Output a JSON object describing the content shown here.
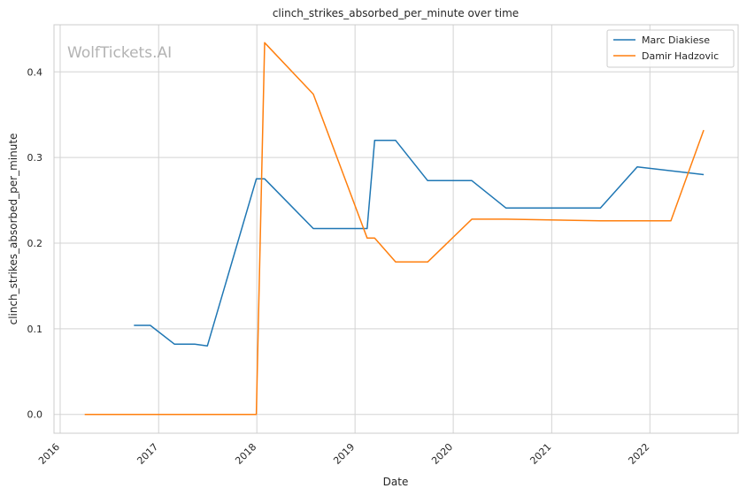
{
  "chart_data": {
    "type": "line",
    "title": "clinch_strikes_absorbed_per_minute over time",
    "xlabel": "Date",
    "ylabel": "clinch_strikes_absorbed_per_minute",
    "watermark": "WolfTickets.AI",
    "x_ticks": [
      "2016",
      "2017",
      "2018",
      "2019",
      "2020",
      "2021",
      "2022"
    ],
    "y_ticks": [
      "0.0",
      "0.1",
      "0.2",
      "0.3",
      "0.4"
    ],
    "xlim": [
      "2015-12-09",
      "2022-11-25"
    ],
    "ylim": [
      -0.022,
      0.455
    ],
    "grid": true,
    "legend_position": "top-right",
    "colors": {
      "Marc Diakiese": "#1f77b4",
      "Damir Hadzovic": "#ff7f0e",
      "grid": "#d3d3d3",
      "frame": "#cccccc"
    },
    "series": [
      {
        "name": "Marc Diakiese",
        "color": "#1f77b4",
        "x": [
          "2016-10-01",
          "2016-12-01",
          "2017-03-01",
          "2017-05-15",
          "2017-07-01",
          "2017-12-30",
          "2018-01-30",
          "2018-07-30",
          "2019-02-15",
          "2019-03-15",
          "2019-06-01",
          "2019-09-28",
          "2020-03-10",
          "2020-07-15",
          "2021-01-01",
          "2021-07-01",
          "2021-11-15",
          "2022-07-20"
        ],
        "values": [
          0.104,
          0.104,
          0.082,
          0.082,
          0.08,
          0.275,
          0.275,
          0.217,
          0.217,
          0.32,
          0.32,
          0.273,
          0.273,
          0.241,
          0.241,
          0.241,
          0.289,
          0.28
        ]
      },
      {
        "name": "Damir Hadzovic",
        "color": "#ff7f0e",
        "x": [
          "2016-04-01",
          "2017-12-30",
          "2018-01-30",
          "2018-07-30",
          "2019-02-15",
          "2019-03-15",
          "2019-06-01",
          "2019-09-28",
          "2020-03-10",
          "2020-07-15",
          "2021-07-01",
          "2022-03-20",
          "2022-07-20"
        ],
        "values": [
          0.0,
          0.0,
          0.434,
          0.374,
          0.206,
          0.206,
          0.178,
          0.178,
          0.228,
          0.228,
          0.226,
          0.226,
          0.332
        ]
      }
    ]
  }
}
